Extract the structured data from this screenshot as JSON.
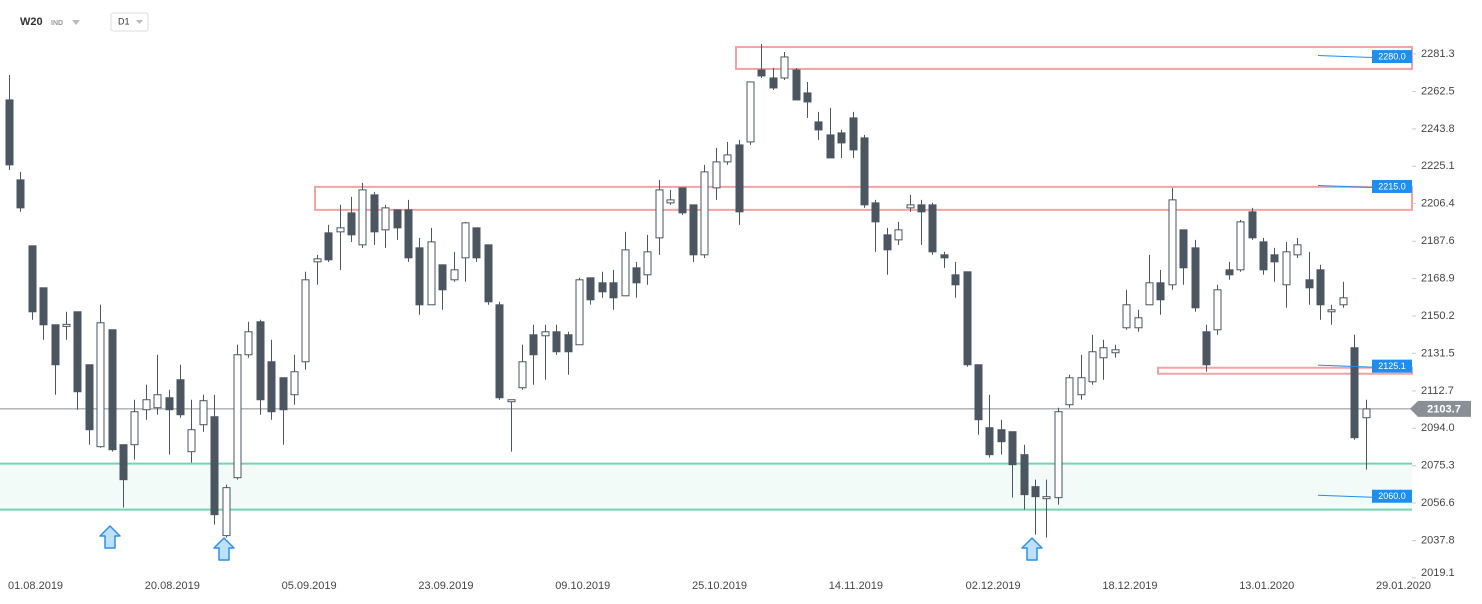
{
  "chart_data": {
    "type": "candlestick",
    "title": "W20",
    "market": "IND",
    "timeframe": "D1",
    "categories": [
      "01.08.2019",
      null,
      null,
      null,
      null,
      null,
      null,
      null,
      null,
      null,
      null,
      null,
      "20.08.2019",
      null,
      null,
      null,
      null,
      null,
      null,
      null,
      null,
      null,
      null,
      null,
      "05.09.2019",
      null,
      null,
      null,
      null,
      null,
      null,
      null,
      null,
      null,
      null,
      null,
      "23.09.2019",
      null,
      null,
      null,
      null,
      null,
      null,
      null,
      null,
      null,
      null,
      null,
      "09.10.2019",
      null,
      null,
      null,
      null,
      null,
      null,
      null,
      null,
      null,
      null,
      null,
      "25.10.2019",
      null,
      null,
      null,
      null,
      null,
      null,
      null,
      null,
      null,
      null,
      null,
      "14.11.2019",
      null,
      null,
      null,
      null,
      null,
      null,
      null,
      null,
      null,
      null,
      null,
      "02.12.2019",
      null,
      null,
      null,
      null,
      null,
      null,
      null,
      null,
      null,
      null,
      null,
      "18.12.2019",
      null,
      null,
      null,
      null,
      null,
      null,
      null,
      null,
      null,
      null,
      null,
      "13.01.2020",
      null,
      null,
      null,
      null,
      null,
      null,
      null,
      null,
      null,
      null,
      null,
      "29.01.2020"
    ],
    "open": [
      2258.3,
      2218.3,
      2185.3,
      2164.3,
      2145.8,
      2145,
      2152.3,
      2125.8,
      2084.8,
      2143.3,
      2085.8,
      2085.8,
      2103.3,
      2104.3,
      2109.3,
      2118.3,
      2082.3,
      2095.8,
      2099.8,
      2040.3,
      2069.3,
      2130.8,
      2147.3,
      2127.3,
      2119.3,
      2110.8,
      2127.3,
      2177.3,
      2191.8,
      2192.3,
      2201.8,
      2185.8,
      2210.8,
      2193.3,
      2203.3,
      2203.3,
      2184.3,
      2155.8,
      2175.8,
      2168.3,
      2179.3,
      2194.3,
      2185.8,
      2155.8,
      2107.3,
      2114.3,
      2140.8,
      2140.3,
      2142.3,
      2140.8,
      2135.8,
      2169.3,
      2166.8,
      2166.8,
      2160.3,
      2174.3,
      2170.8,
      2189.3,
      2206.8,
      2214.3,
      2205.8,
      2180.8,
      2214.3,
      2227.3,
      2235.8,
      2237.3,
      2273.3,
      2269.3,
      2269.3,
      2273.3,
      2261.8,
      2247.3,
      2240.8,
      2241.8,
      2249.3,
      2239.3,
      2206.8,
      2190.8,
      2188.3,
      2204.3,
      2205.8,
      2205.8,
      2180.8,
      2170.8,
      2172.3,
      2125.8,
      2094.3,
      2093.3,
      2092.3,
      2080.8,
      2064.8,
      2058.8,
      2059.3,
      2105.8,
      2110.8,
      2117.3,
      2129.3,
      2131.8,
      2144.3,
      2144.3,
      2155.8,
      2166.8,
      2165.8,
      2193.3,
      2184.3,
      2142.3,
      2143.3,
      2173.3,
      2173.3,
      2202.3,
      2187.3,
      2180.8,
      2165.8,
      2180.8,
      2168.3,
      2173.3,
      2152.3,
      2155.8,
      2134.3,
      2099.3,
      null
    ],
    "high": [
      2270.8,
      2222.3,
      2185.3,
      2164.3,
      2145.8,
      2152.3,
      2152.3,
      2125.8,
      2155.8,
      2143.3,
      2085.8,
      2108.3,
      2115.8,
      2130.8,
      2113.3,
      2125.8,
      2108.3,
      2110.8,
      2110.8,
      2065.8,
      2135.8,
      2147.3,
      2148.3,
      2138.3,
      2119.3,
      2130.8,
      2172.3,
      2180.8,
      2195.8,
      2205.8,
      2209.8,
      2216.8,
      2212.3,
      2205.8,
      2203.3,
      2208.3,
      2189.3,
      2194.3,
      2175.8,
      2182.3,
      2197.3,
      2194.3,
      2185.8,
      2157.3,
      2108.3,
      2135.8,
      2145.8,
      2145.8,
      2145.8,
      2142.3,
      2169.3,
      2169.3,
      2172.3,
      2173.3,
      2192.3,
      2177.3,
      2190.8,
      2218.3,
      2213.3,
      2214.3,
      2205.8,
      2225.8,
      2234.3,
      2237.3,
      2238.3,
      2267.3,
      2286.3,
      2274.3,
      2282.3,
      2274.3,
      2267.3,
      2252.3,
      2254.3,
      2243.3,
      2252.3,
      2240.8,
      2208.3,
      2194.3,
      2197.3,
      2210.8,
      2208.3,
      2206.8,
      2182.3,
      2177.3,
      2172.3,
      2125.8,
      2110.8,
      2098.3,
      2092.3,
      2085.8,
      2068.3,
      2068.3,
      2104.3,
      2120.8,
      2130.8,
      2140.8,
      2138.3,
      2135.8,
      2163.3,
      2153.3,
      2180.8,
      2173.3,
      2214.3,
      2193.3,
      2188.3,
      2145.8,
      2165.8,
      2177.3,
      2198.3,
      2204.3,
      2189.3,
      2184.3,
      2187.3,
      2189.3,
      2182.3,
      2175.8,
      2155.8,
      2167.3,
      2140.8,
      2108.3,
      null
    ],
    "low": [
      2223.3,
      2202.3,
      2148.3,
      2138.3,
      2110.8,
      2138.3,
      2103.3,
      2085.8,
      2084.3,
      2082.3,
      2054.3,
      2078.3,
      2098.3,
      2100.8,
      2080.8,
      2099.3,
      2076.8,
      2092.3,
      2045.8,
      2039.3,
      2068.3,
      2129.3,
      2100.8,
      2098.3,
      2085.8,
      2105.8,
      2123.3,
      2165.8,
      2177.3,
      2173.3,
      2187.3,
      2184.3,
      2185.8,
      2184.3,
      2188.3,
      2177.3,
      2150.8,
      2155.8,
      2153.3,
      2167.3,
      2167.3,
      2177.3,
      2155.8,
      2108.3,
      2082.3,
      2113.3,
      2115.8,
      2118.3,
      2130.8,
      2120.8,
      2135.8,
      2155.8,
      2159.3,
      2153.3,
      2160.3,
      2159.3,
      2165.8,
      2180.8,
      2205.8,
      2200.8,
      2177.3,
      2179.3,
      2208.3,
      2225.8,
      2195.8,
      2235.8,
      2269.3,
      2263.3,
      2268.3,
      2258.3,
      2249.3,
      2238.3,
      2229.3,
      2229.3,
      2229.3,
      2204.3,
      2182.3,
      2170.8,
      2185.8,
      2202.3,
      2185.8,
      2180.8,
      2174.3,
      2159.3,
      2124.8,
      2090.8,
      2079.3,
      2080.8,
      2059.3,
      2053.3,
      2040.8,
      2039.3,
      2055.8,
      2104.3,
      2108.3,
      2115.8,
      2118.3,
      2129.3,
      2143.3,
      2142.3,
      2155.8,
      2150.8,
      2163.3,
      2165.8,
      2152.3,
      2122.3,
      2140.8,
      2168.3,
      2172.3,
      2188.3,
      2170.8,
      2167.3,
      2154.3,
      2179.3,
      2155.8,
      2148.3,
      2145.8,
      2154.3,
      2088.3,
      2073.3,
      null
    ],
    "close": [
      2225.8,
      2204.3,
      2152.3,
      2145.8,
      2125.8,
      2146,
      2112.3,
      2093.3,
      2146.8,
      2083.3,
      2068.3,
      2102.3,
      2108.3,
      2110.8,
      2103.3,
      2100.8,
      2093.3,
      2107.8,
      2050.8,
      2064.3,
      2130.8,
      2142.3,
      2108.3,
      2102.3,
      2103.3,
      2122.3,
      2168.3,
      2178.8,
      2178.3,
      2194.3,
      2190.8,
      2213.3,
      2192.3,
      2204.3,
      2194.3,
      2179.3,
      2155.8,
      2187.3,
      2163.3,
      2173.3,
      2196.8,
      2179.3,
      2157.3,
      2109.3,
      2108.3,
      2127.3,
      2130.8,
      2142.3,
      2132.3,
      2132.3,
      2168.3,
      2158.3,
      2162.3,
      2159.3,
      2183.3,
      2166.8,
      2182.3,
      2213.3,
      2208.3,
      2201.8,
      2180.8,
      2222.3,
      2227.3,
      2230.8,
      2202.3,
      2267.3,
      2270.3,
      2264.3,
      2279.8,
      2258.3,
      2257.3,
      2243.3,
      2229.3,
      2236.8,
      2233.3,
      2205.8,
      2197.3,
      2183.3,
      2193.3,
      2205.8,
      2202.3,
      2182.3,
      2179.3,
      2165.8,
      2125.8,
      2098.3,
      2080.8,
      2087.3,
      2075.8,
      2060.8,
      2059.8,
      2059.8,
      2102.3,
      2119.3,
      2119.3,
      2132.3,
      2134.3,
      2133.3,
      2155.8,
      2149.3,
      2166.8,
      2158.3,
      2208.3,
      2174.3,
      2154.3,
      2125.8,
      2163.3,
      2170.8,
      2197.3,
      2189.3,
      2173.3,
      2177.3,
      2182.3,
      2185.8,
      2164.3,
      2155.8,
      2153.3,
      2159.3,
      2089.3,
      2103.7,
      null
    ],
    "up_color": "#ffffff",
    "down_color": "#4b5660",
    "ylim": [
      2019.1,
      2308.3
    ],
    "yticks": [
      2281.3,
      2262.5,
      2243.8,
      2225.1,
      2206.4,
      2187.6,
      2168.9,
      2150.2,
      2131.5,
      2112.7,
      {
        "value": 2094,
        "label": "2094.0"
      },
      2075.3,
      2056.6,
      2037.8,
      2019.1
    ],
    "zones": [
      {
        "low": 2273.8,
        "high": 2284.8,
        "color": "#f3a3a3"
      },
      {
        "low": 2203.3,
        "high": 2214.8,
        "color": "#f3a3a3"
      },
      {
        "low": 2121.3,
        "high": 2124.3,
        "color": "#f3a3a3"
      },
      {
        "low": 2053.3,
        "high": 2076.3,
        "color": "#72d5b0"
      }
    ],
    "levels": [
      {
        "value": 2280,
        "label": "2280.0"
      },
      {
        "value": 2215,
        "label": "2215.0"
      },
      {
        "value": 2125.1,
        "label": "2125.1"
      },
      {
        "value": 2060,
        "label": "2060.0"
      }
    ],
    "level_color": "#1f8ef1",
    "last_price": 2103.7
  }
}
